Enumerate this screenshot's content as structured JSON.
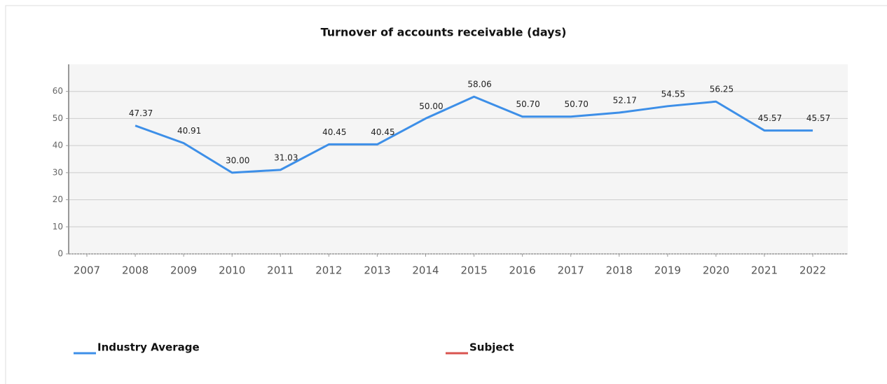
{
  "chart_data": {
    "type": "line",
    "title": "Turnover of accounts receivable (days)",
    "categories": [
      "2007",
      "2008",
      "2009",
      "2010",
      "2011",
      "2012",
      "2013",
      "2014",
      "2015",
      "2016",
      "2017",
      "2018",
      "2019",
      "2020",
      "2021",
      "2022"
    ],
    "series": [
      {
        "name": "Industry Average",
        "color": "#3d8fe8",
        "values": [
          null,
          47.37,
          40.91,
          30,
          31.03,
          40.45,
          40.45,
          50,
          58.06,
          50.7,
          50.7,
          52.17,
          54.55,
          56.25,
          45.57,
          45.57
        ],
        "value_labels": [
          null,
          "47.37",
          "40.91",
          "30.00",
          "31.03",
          "40.45",
          "40.45",
          "50.00",
          "58.06",
          "50.70",
          "50.70",
          "52.17",
          "54.55",
          "56.25",
          "45.57",
          "45.57"
        ]
      },
      {
        "name": "Subject",
        "color": "#d9534f",
        "values": [
          null,
          null,
          null,
          null,
          null,
          null,
          null,
          null,
          null,
          null,
          null,
          null,
          null,
          null,
          null,
          null
        ]
      }
    ],
    "ylim": [
      0,
      70
    ],
    "yticks": [
      0,
      10,
      20,
      30,
      40,
      50,
      60
    ],
    "grid": true
  }
}
